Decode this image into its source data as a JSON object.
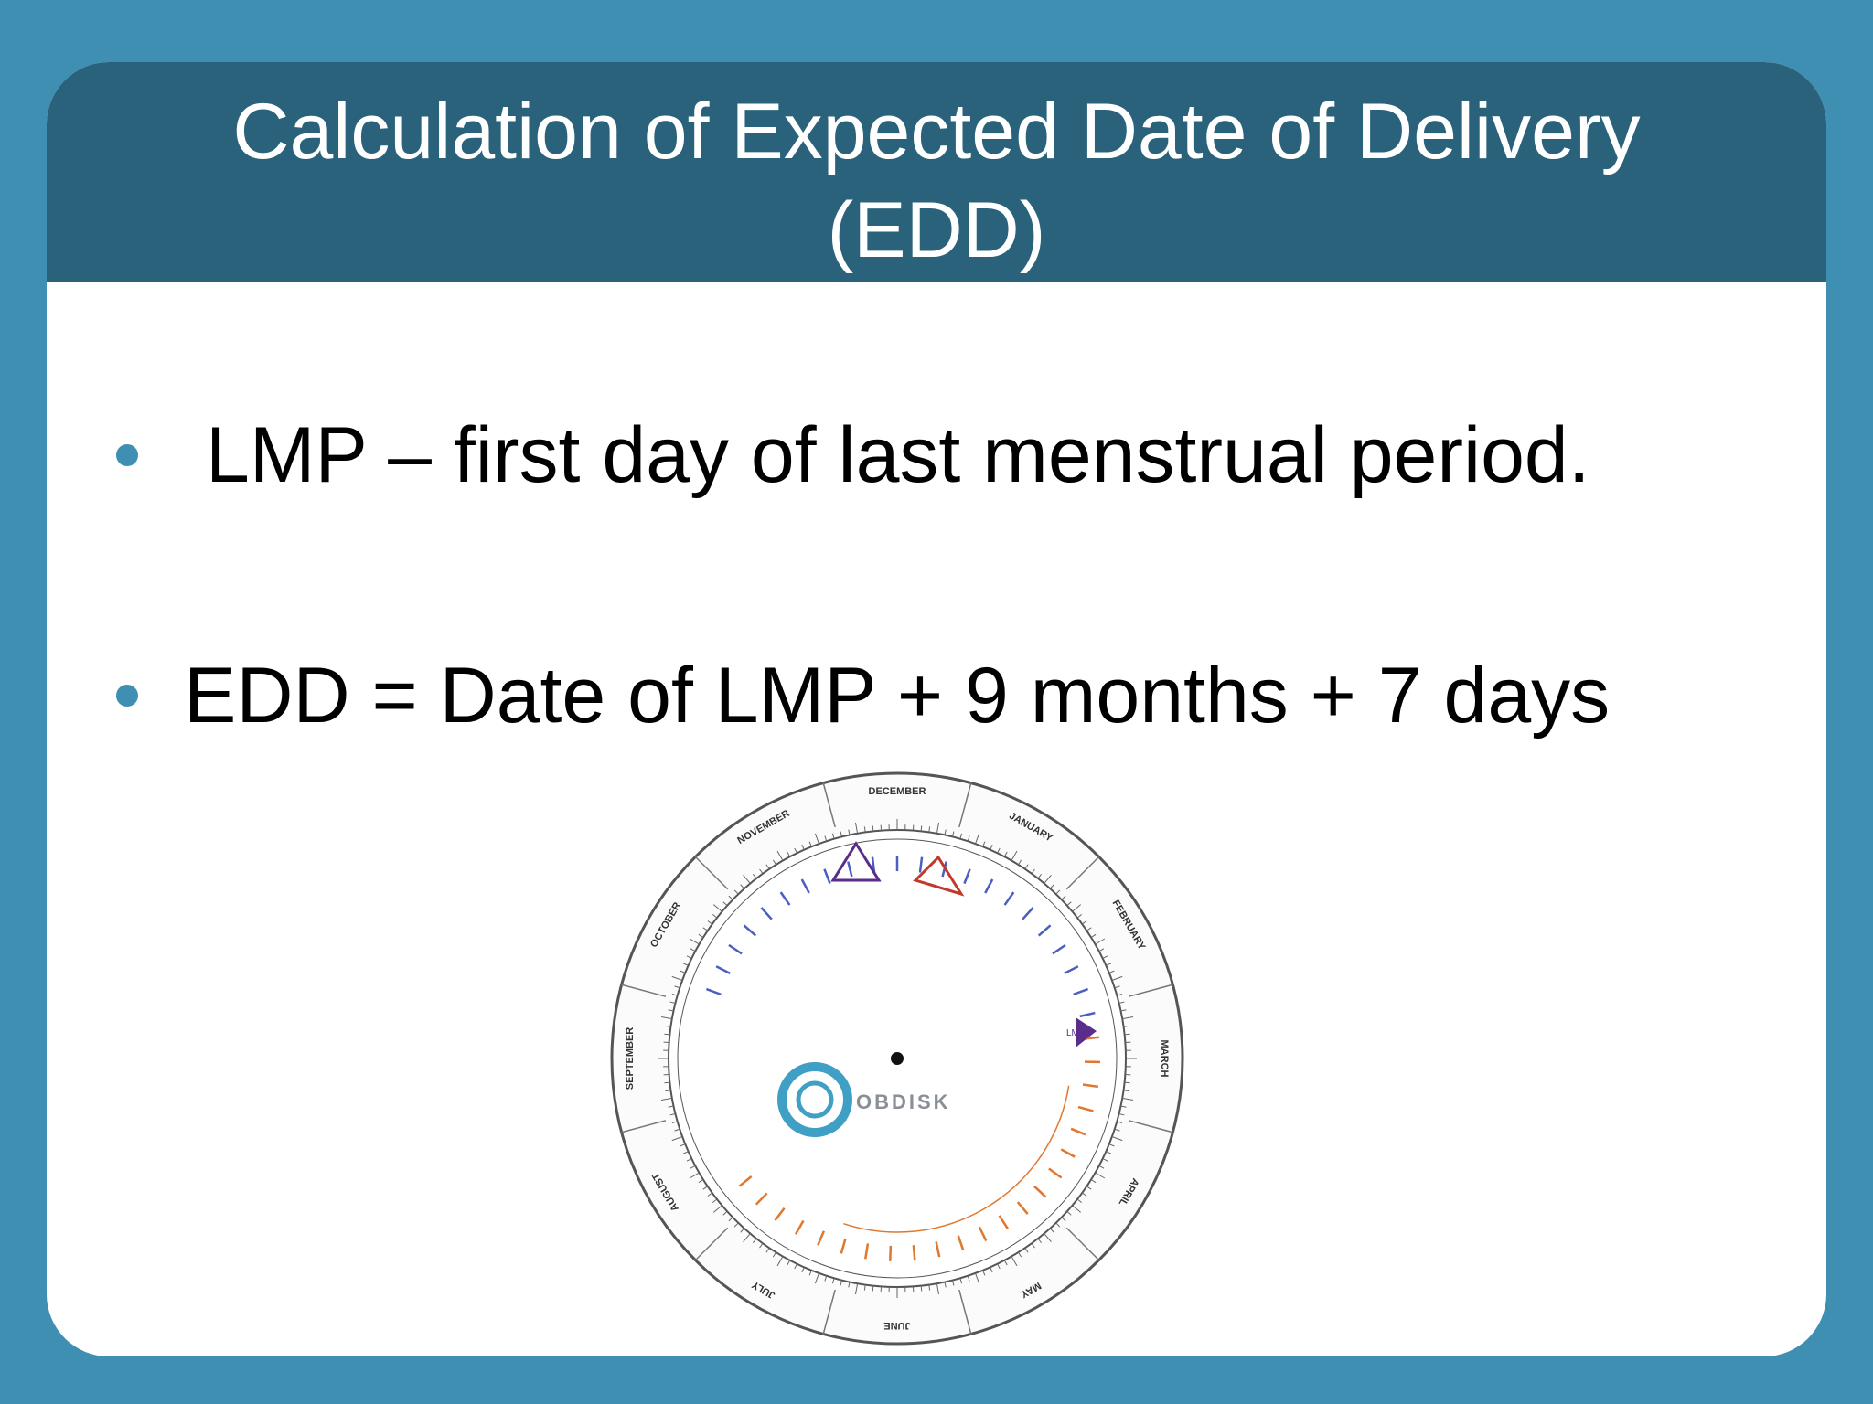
{
  "slide": {
    "title_line1": "Calculation of Expected Date of Delivery",
    "title_line2": "(EDD)",
    "bullets": [
      "LMP – first day of last menstrual period.",
      "EDD = Date of LMP + 9 months + 7 days"
    ]
  },
  "wheel": {
    "months": [
      "DECEMBER",
      "JANUARY",
      "FEBRUARY",
      "MARCH",
      "APRIL",
      "MAY",
      "JUNE",
      "JULY",
      "AUGUST",
      "SEPTEMBER",
      "OCTOBER",
      "NOVEMBER"
    ],
    "brand": "OBDISK",
    "marker_label": "LMP",
    "icons": [
      "triangle-marker-icon",
      "triangle-marker-icon",
      "triangle-marker-icon"
    ],
    "colors": {
      "ring": "#555555",
      "blue_ticks": "#4a5fc0",
      "orange_ticks": "#e0772f",
      "purple_marker": "#5a2d8c",
      "red_marker": "#c0392b",
      "logo": "#3f9fc4"
    }
  }
}
